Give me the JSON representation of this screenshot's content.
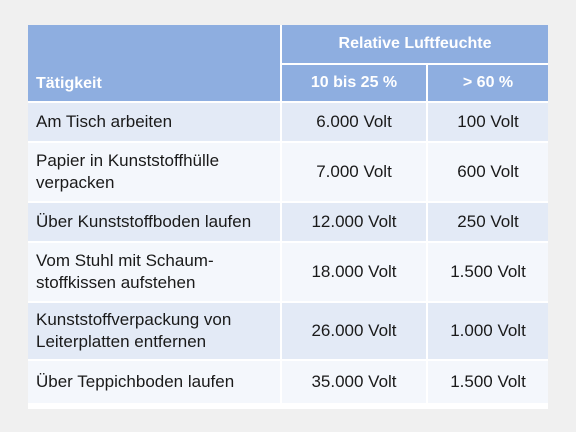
{
  "header": {
    "col_activity": "Tätigkeit",
    "group_label": "Relative Luftfeuchte",
    "sub1": "10  bis 25 %",
    "sub2": "> 60 %"
  },
  "rows": [
    {
      "activity": "Am Tisch arbeiten",
      "low": "6.000 Volt",
      "high": "100 Volt"
    },
    {
      "activity": "Papier in Kunststoffhülle verpacken",
      "low": "7.000 Volt",
      "high": "600 Volt"
    },
    {
      "activity": "Über Kunststoffboden laufen",
      "low": "12.000 Volt",
      "high": "250 Volt"
    },
    {
      "activity": "Vom Stuhl mit Schaum-stoffkissen aufstehen",
      "low": "18.000 Volt",
      "high": "1.500 Volt"
    },
    {
      "activity": "Kunststoffverpackung von Leiterplatten entfernen",
      "low": "26.000 Volt",
      "high": "1.000 Volt"
    },
    {
      "activity": "Über Teppichboden laufen",
      "low": "35.000 Volt",
      "high": "1.500 Volt"
    }
  ]
}
